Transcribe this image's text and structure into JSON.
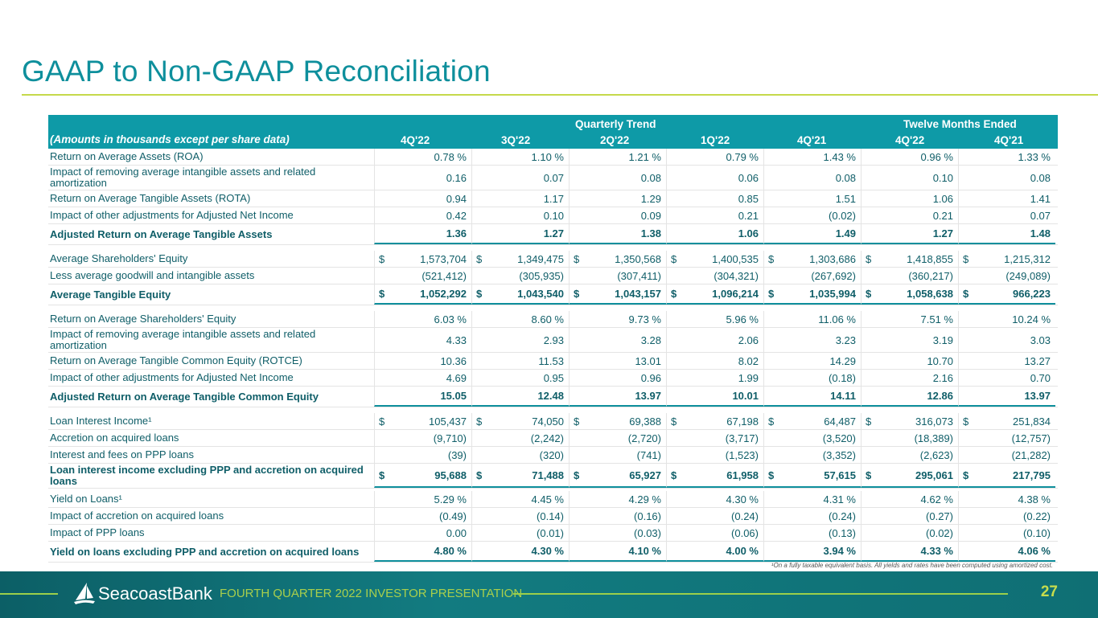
{
  "title": "GAAP to Non-GAAP Reconciliation",
  "table": {
    "group_quarterly": "Quarterly Trend",
    "group_twelve": "Twelve  Months Ended",
    "label_header": "(Amounts in thousands except per share data)",
    "columns": [
      "4Q'22",
      "3Q'22",
      "2Q'22",
      "1Q'22",
      "4Q'21",
      "4Q'22",
      "4Q'21"
    ],
    "rows": [
      {
        "label": "Return on Average Assets (ROA)",
        "values": [
          "0.78 %",
          "1.10 %",
          "1.21 %",
          "0.79 %",
          "1.43 %",
          "0.96 %",
          "1.33 %"
        ]
      },
      {
        "label": "Impact of removing average intangible assets and related amortization",
        "values": [
          "0.16",
          "0.07",
          "0.08",
          "0.06",
          "0.08",
          "0.10",
          "0.08"
        ],
        "tall": true
      },
      {
        "label": "Return on Average Tangible Assets (ROTA)",
        "values": [
          "0.94",
          "1.17",
          "1.29",
          "0.85",
          "1.51",
          "1.06",
          "1.41"
        ]
      },
      {
        "label": "Impact of other adjustments for Adjusted Net Income",
        "values": [
          "0.42",
          "0.10",
          "0.09",
          "0.21",
          "(0.02)",
          "0.21",
          "0.07"
        ]
      },
      {
        "label": "Adjusted Return on Average Tangible Assets",
        "values": [
          "1.36",
          "1.27",
          "1.38",
          "1.06",
          "1.49",
          "1.27",
          "1.48"
        ],
        "bold": true
      },
      {
        "label": "Average Shareholders' Equity",
        "values": [
          "1,573,704",
          "1,349,475",
          "1,350,568",
          "1,400,535",
          "1,303,686",
          "1,418,855",
          "1,215,312"
        ],
        "dollar": true
      },
      {
        "label": "Less average goodwill and intangible assets",
        "values": [
          "(521,412)",
          "(305,935)",
          "(307,411)",
          "(304,321)",
          "(267,692)",
          "(360,217)",
          "(249,089)"
        ]
      },
      {
        "label": "Average Tangible Equity",
        "values": [
          "1,052,292",
          "1,043,540",
          "1,043,157",
          "1,096,214",
          "1,035,994",
          "1,058,638",
          "966,223"
        ],
        "bold": true,
        "dollar": true
      },
      {
        "label": "Return on Average Shareholders' Equity",
        "values": [
          "6.03 %",
          "8.60 %",
          "9.73 %",
          "5.96 %",
          "11.06 %",
          "7.51 %",
          "10.24 %"
        ]
      },
      {
        "label": "Impact of removing average intangible assets and related amortization",
        "values": [
          "4.33",
          "2.93",
          "3.28",
          "2.06",
          "3.23",
          "3.19",
          "3.03"
        ],
        "tall": true
      },
      {
        "label": "Return on Average Tangible Common Equity (ROTCE)",
        "values": [
          "10.36",
          "11.53",
          "13.01",
          "8.02",
          "14.29",
          "10.70",
          "13.27"
        ]
      },
      {
        "label": "Impact of other adjustments for Adjusted Net Income",
        "values": [
          "4.69",
          "0.95",
          "0.96",
          "1.99",
          "(0.18)",
          "2.16",
          "0.70"
        ]
      },
      {
        "label": "Adjusted Return on Average Tangible Common Equity",
        "values": [
          "15.05",
          "12.48",
          "13.97",
          "10.01",
          "14.11",
          "12.86",
          "13.97"
        ],
        "bold": true
      },
      {
        "label": "Loan Interest Income¹",
        "values": [
          "105,437",
          "74,050",
          "69,388",
          "67,198",
          "64,487",
          "316,073",
          "251,834"
        ],
        "dollar": true
      },
      {
        "label": "Accretion on acquired loans",
        "values": [
          "(9,710)",
          "(2,242)",
          "(2,720)",
          "(3,717)",
          "(3,520)",
          "(18,389)",
          "(12,757)"
        ]
      },
      {
        "label": "Interest and fees on PPP loans",
        "values": [
          "(39)",
          "(320)",
          "(741)",
          "(1,523)",
          "(3,352)",
          "(2,623)",
          "(21,282)"
        ]
      },
      {
        "label": "Loan interest income excluding PPP and accretion on acquired loans",
        "values": [
          "95,688",
          "71,488",
          "65,927",
          "61,958",
          "57,615",
          "295,061",
          "217,795"
        ],
        "bold": true,
        "dollar": true,
        "tall": true
      },
      {
        "label": "Yield on Loans¹",
        "values": [
          "5.29 %",
          "4.45 %",
          "4.29 %",
          "4.30 %",
          "4.31 %",
          "4.62 %",
          "4.38 %"
        ]
      },
      {
        "label": "Impact of accretion on acquired loans",
        "values": [
          "(0.49)",
          "(0.14)",
          "(0.16)",
          "(0.24)",
          "(0.24)",
          "(0.27)",
          "(0.22)"
        ]
      },
      {
        "label": "Impact of PPP loans",
        "values": [
          "0.00",
          "(0.01)",
          "(0.03)",
          "(0.06)",
          "(0.13)",
          "(0.02)",
          "(0.10)"
        ]
      },
      {
        "label": "Yield on loans excluding PPP and accretion on acquired loans",
        "values": [
          "4.80 %",
          "4.30 %",
          "4.10 %",
          "4.00 %",
          "3.94 %",
          "4.33 %",
          "4.06 %"
        ],
        "bold": true
      }
    ],
    "dollar_sign": "$"
  },
  "footnote": "¹On a fully taxable equivalent basis. All yields and rates have been computed using amortized cost.",
  "footer": {
    "brand": "SeacoastBank",
    "presentation": "FOURTH QUARTER 2022 INVESTOR PRESENTATION",
    "page": "27"
  }
}
